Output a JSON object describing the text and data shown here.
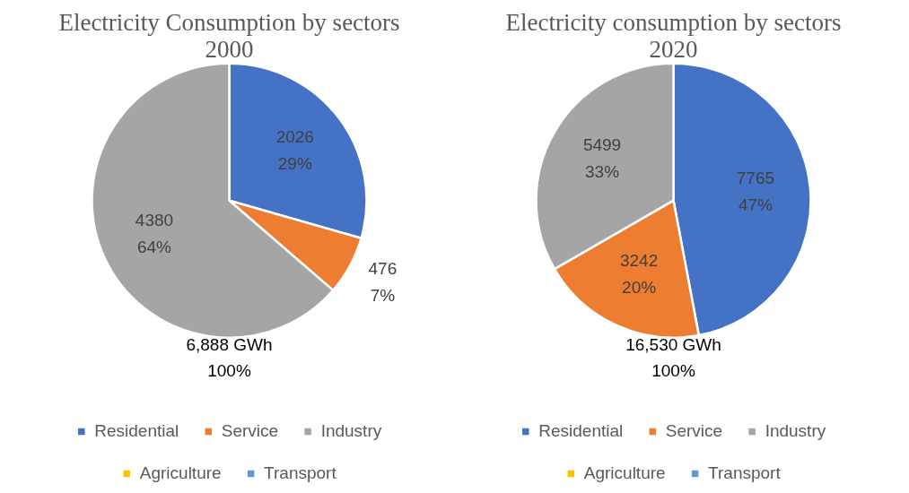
{
  "chart_data": [
    {
      "type": "pie",
      "title": "Electricity Consumption by sectors\n2000",
      "categories": [
        "Residential",
        "Service",
        "Industry",
        "Agriculture",
        "Transport"
      ],
      "values": [
        2026,
        476,
        4380,
        null,
        null
      ],
      "colors": [
        "#4472c4",
        "#ed7d31",
        "#a5a5a5",
        "#ffc000",
        "#5b9bd5"
      ],
      "value_labels": [
        "2026\n29%",
        "476\n7%",
        "4380\n64%",
        null,
        null
      ],
      "annotations": [
        "6,888 GWh\n100%"
      ],
      "legend": "bottom"
    },
    {
      "type": "pie",
      "title": "Electricity consumption by sectors\n2020",
      "categories": [
        "Residential",
        "Service",
        "Industry",
        "Agriculture",
        "Transport"
      ],
      "values": [
        7765,
        3242,
        5499,
        null,
        null
      ],
      "colors": [
        "#4472c4",
        "#ed7d31",
        "#a5a5a5",
        "#ffc000",
        "#5b9bd5"
      ],
      "value_labels": [
        "7765\n47%",
        "3242\n20%",
        "5499\n33%",
        null,
        null
      ],
      "annotations": [
        "16,530 GWh\n100%"
      ],
      "legend": "bottom"
    }
  ]
}
